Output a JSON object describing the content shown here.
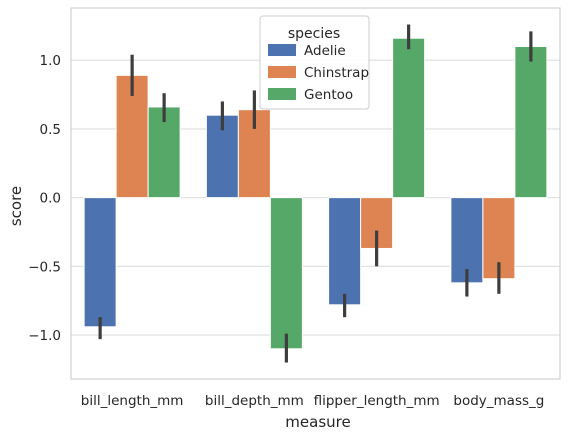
{
  "chart_data": {
    "type": "bar",
    "title": "",
    "xlabel": "measure",
    "ylabel": "score",
    "categories": [
      "bill_length_mm",
      "bill_depth_mm",
      "flipper_length_mm",
      "body_mass_g"
    ],
    "ylim": [
      -1.32,
      1.38
    ],
    "yticks": [
      -1.0,
      -0.5,
      0.0,
      0.5,
      1.0
    ],
    "ytick_labels": [
      "−1.0",
      "−0.5",
      "0.0",
      "0.5",
      "1.0"
    ],
    "grid": true,
    "legend": {
      "title": "species",
      "position": "upper-center"
    },
    "series": [
      {
        "name": "Adelie",
        "color": "#4c72b0",
        "values": [
          -0.94,
          0.6,
          -0.78,
          -0.62
        ],
        "ci_low": [
          -1.03,
          0.49,
          -0.87,
          -0.72
        ],
        "ci_high": [
          -0.87,
          0.7,
          -0.7,
          -0.52
        ]
      },
      {
        "name": "Chinstrap",
        "color": "#dd8452",
        "values": [
          0.89,
          0.64,
          -0.37,
          -0.59
        ],
        "ci_low": [
          0.74,
          0.5,
          -0.5,
          -0.7
        ],
        "ci_high": [
          1.04,
          0.78,
          -0.24,
          -0.47
        ]
      },
      {
        "name": "Gentoo",
        "color": "#55a868",
        "values": [
          0.66,
          -1.1,
          1.16,
          1.1
        ],
        "ci_low": [
          0.55,
          -1.2,
          1.08,
          0.99
        ],
        "ci_high": [
          0.76,
          -0.99,
          1.26,
          1.21
        ]
      }
    ]
  }
}
